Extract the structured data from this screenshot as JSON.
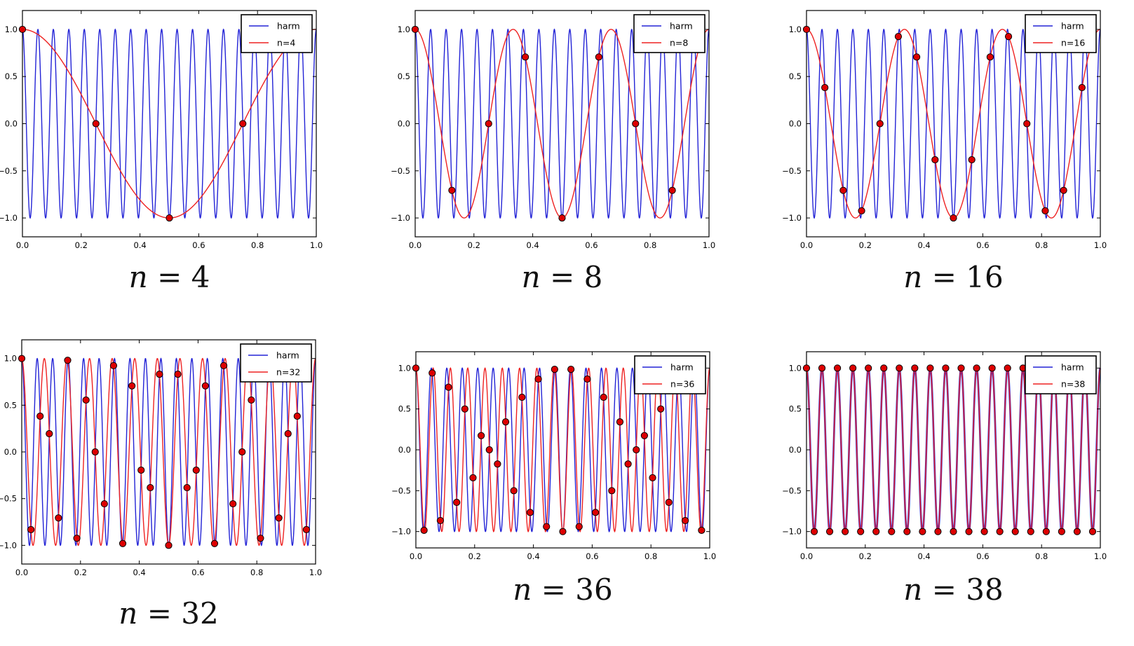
{
  "figure": {
    "background": "#ffffff",
    "description_visible_charts": 6
  },
  "style": {
    "harmonic_color": "#2323d6",
    "alias_color": "#ee2222",
    "marker_face": "#dd0000",
    "marker_edge": "#000000",
    "axes_color": "#000000",
    "legend_border": "#000000",
    "legend_background": "#ffffff"
  },
  "chart_data": [
    {
      "type": "line",
      "id": "n4",
      "caption": "n = 4",
      "caption_var": "n",
      "caption_rest": " = 4",
      "n": 4,
      "harmonic": {
        "label": "harm",
        "frequency": 19,
        "amplitude": 1
      },
      "alias": {
        "label": "n=4",
        "frequency": 1,
        "amplitude": 1
      },
      "samples": {
        "x_rule": "k/n for k=0..n-1",
        "y": [
          1,
          0,
          -1,
          0
        ]
      },
      "legend": {
        "position": "upper right",
        "entries": [
          "harm",
          "n=4"
        ]
      },
      "xlim": [
        0,
        1
      ],
      "ylim": [
        -1.2,
        1.2
      ],
      "grid": false,
      "x_tick_values": [
        0,
        0.2,
        0.4,
        0.6,
        0.8,
        1
      ],
      "x_tick_labels": [
        "0.0",
        "0.2",
        "0.4",
        "0.6",
        "0.8",
        "1.0"
      ],
      "y_tick_values": [
        1,
        0.5,
        0,
        -0.5,
        -1
      ],
      "y_tick_labels": [
        "1.0",
        "0.5",
        "0.0",
        "−0.5",
        "−1.0"
      ]
    },
    {
      "type": "line",
      "id": "n8",
      "caption": "n = 8",
      "caption_var": "n",
      "caption_rest": " = 8",
      "n": 8,
      "harmonic": {
        "label": "harm",
        "frequency": 19,
        "amplitude": 1
      },
      "alias": {
        "label": "n=8",
        "frequency": 3,
        "amplitude": 1
      },
      "samples": {
        "x_rule": "k/n for k=0..n-1",
        "y": [
          1,
          -0.7071,
          0,
          0.7071,
          -1,
          0.7071,
          0,
          -0.7071
        ]
      },
      "legend": {
        "position": "upper right",
        "entries": [
          "harm",
          "n=8"
        ]
      },
      "xlim": [
        0,
        1
      ],
      "ylim": [
        -1.2,
        1.2
      ],
      "grid": false,
      "x_tick_values": [
        0,
        0.2,
        0.4,
        0.6,
        0.8,
        1
      ],
      "x_tick_labels": [
        "0.0",
        "0.2",
        "0.4",
        "0.6",
        "0.8",
        "1.0"
      ],
      "y_tick_values": [
        1,
        0.5,
        0,
        -0.5,
        -1
      ],
      "y_tick_labels": [
        "1.0",
        "0.5",
        "0.0",
        "−0.5",
        "−1.0"
      ]
    },
    {
      "type": "line",
      "id": "n16",
      "caption": "n = 16",
      "caption_var": "n",
      "caption_rest": " = 16",
      "n": 16,
      "harmonic": {
        "label": "harm",
        "frequency": 19,
        "amplitude": 1
      },
      "alias": {
        "label": "n=16",
        "frequency": 3,
        "amplitude": 1
      },
      "samples": {
        "x_rule": "k/n for k=0..n-1",
        "y": [
          1,
          0.3827,
          -0.7071,
          -0.9239,
          0,
          0.9239,
          0.7071,
          -0.3827,
          -1,
          -0.3827,
          0.7071,
          0.9239,
          0,
          -0.9239,
          -0.7071,
          0.3827
        ]
      },
      "legend": {
        "position": "upper right",
        "entries": [
          "harm",
          "n=16"
        ]
      },
      "xlim": [
        0,
        1
      ],
      "ylim": [
        -1.2,
        1.2
      ],
      "grid": false,
      "x_tick_values": [
        0,
        0.2,
        0.4,
        0.6,
        0.8,
        1
      ],
      "x_tick_labels": [
        "0.0",
        "0.2",
        "0.4",
        "0.6",
        "0.8",
        "1.0"
      ],
      "y_tick_values": [
        1,
        0.5,
        0,
        -0.5,
        -1
      ],
      "y_tick_labels": [
        "1.0",
        "0.5",
        "0.0",
        "−0.5",
        "−1.0"
      ]
    },
    {
      "type": "line",
      "id": "n32",
      "caption": "n = 32",
      "caption_var": "n",
      "caption_rest": " = 32",
      "n": 32,
      "harmonic": {
        "label": "harm",
        "frequency": 19,
        "amplitude": 1
      },
      "alias": {
        "label": "n=32",
        "frequency": 13,
        "amplitude": 1
      },
      "samples": {
        "x_rule": "k/n for k=0..n-1",
        "y": [
          1,
          -0.8315,
          0.3827,
          0.1951,
          -0.7071,
          0.9808,
          -0.9239,
          0.5556,
          0,
          -0.5556,
          0.9239,
          -0.9808,
          0.7071,
          -0.1951,
          -0.3827,
          0.8315,
          -1,
          0.8315,
          -0.3827,
          -0.1951,
          0.7071,
          -0.9808,
          0.9239,
          -0.5556,
          0,
          0.5556,
          -0.9239,
          0.9808,
          -0.7071,
          0.1951,
          0.3827,
          -0.8315
        ]
      },
      "legend": {
        "position": "upper right",
        "entries": [
          "harm",
          "n=32"
        ]
      },
      "xlim": [
        0,
        1
      ],
      "ylim": [
        -1.2,
        1.2
      ],
      "grid": false,
      "x_tick_values": [
        0,
        0.2,
        0.4,
        0.6,
        0.8,
        1
      ],
      "x_tick_labels": [
        "0.0",
        "0.2",
        "0.4",
        "0.6",
        "0.8",
        "1.0"
      ],
      "y_tick_values": [
        1,
        0.5,
        0,
        -0.5,
        -1
      ],
      "y_tick_labels": [
        "1.0",
        "0.5",
        "0.0",
        "−0.5",
        "−1.0"
      ]
    },
    {
      "type": "line",
      "id": "n36",
      "caption": "n = 36",
      "caption_var": "n",
      "caption_rest": " = 36",
      "n": 36,
      "harmonic": {
        "label": "harm",
        "frequency": 19,
        "amplitude": 1
      },
      "alias": {
        "label": "n=36",
        "frequency": 17,
        "amplitude": 1
      },
      "samples": {
        "x_rule": "k/n for k=0..n-1",
        "y": [
          1,
          -0.9848,
          0.9397,
          -0.866,
          0.766,
          -0.6428,
          0.5,
          -0.342,
          0.1736,
          0,
          -0.1736,
          0.342,
          -0.5,
          0.6428,
          -0.766,
          0.866,
          -0.9397,
          0.9848,
          -1,
          0.9848,
          -0.9397,
          0.866,
          -0.766,
          0.6428,
          -0.5,
          0.342,
          -0.1736,
          0,
          0.1736,
          -0.342,
          0.5,
          -0.6428,
          0.766,
          -0.866,
          0.9397,
          -0.9848
        ]
      },
      "legend": {
        "position": "upper right",
        "entries": [
          "harm",
          "n=36"
        ]
      },
      "xlim": [
        0,
        1
      ],
      "ylim": [
        -1.2,
        1.2
      ],
      "grid": false,
      "x_tick_values": [
        0,
        0.2,
        0.4,
        0.6,
        0.8,
        1
      ],
      "x_tick_labels": [
        "0.0",
        "0.2",
        "0.4",
        "0.6",
        "0.8",
        "1.0"
      ],
      "y_tick_values": [
        1,
        0.5,
        0,
        -0.5,
        -1
      ],
      "y_tick_labels": [
        "1.0",
        "0.5",
        "0.0",
        "−0.5",
        "−1.0"
      ]
    },
    {
      "type": "line",
      "id": "n38",
      "caption": "n = 38",
      "caption_var": "n",
      "caption_rest": " = 38",
      "n": 38,
      "harmonic": {
        "label": "harm",
        "frequency": 19,
        "amplitude": 1
      },
      "alias": {
        "label": "n=38",
        "frequency": 19,
        "amplitude": 1
      },
      "samples": {
        "x_rule": "k/n for k=0..n-1",
        "y": [
          1,
          -1,
          1,
          -1,
          1,
          -1,
          1,
          -1,
          1,
          -1,
          1,
          -1,
          1,
          -1,
          1,
          -1,
          1,
          -1,
          1,
          -1,
          1,
          -1,
          1,
          -1,
          1,
          -1,
          1,
          -1,
          1,
          -1,
          1,
          -1,
          1,
          -1,
          1,
          -1,
          1,
          -1
        ]
      },
      "legend": {
        "position": "upper right",
        "entries": [
          "harm",
          "n=38"
        ]
      },
      "xlim": [
        0,
        1
      ],
      "ylim": [
        -1.2,
        1.2
      ],
      "grid": false,
      "x_tick_values": [
        0,
        0.2,
        0.4,
        0.6,
        0.8,
        1
      ],
      "x_tick_labels": [
        "0.0",
        "0.2",
        "0.4",
        "0.6",
        "0.8",
        "1.0"
      ],
      "y_tick_values": [
        1,
        0.5,
        0,
        -0.5,
        -1
      ],
      "y_tick_labels": [
        "1.0",
        "0.5",
        "0.0",
        "−0.5",
        "−1.0"
      ]
    }
  ]
}
